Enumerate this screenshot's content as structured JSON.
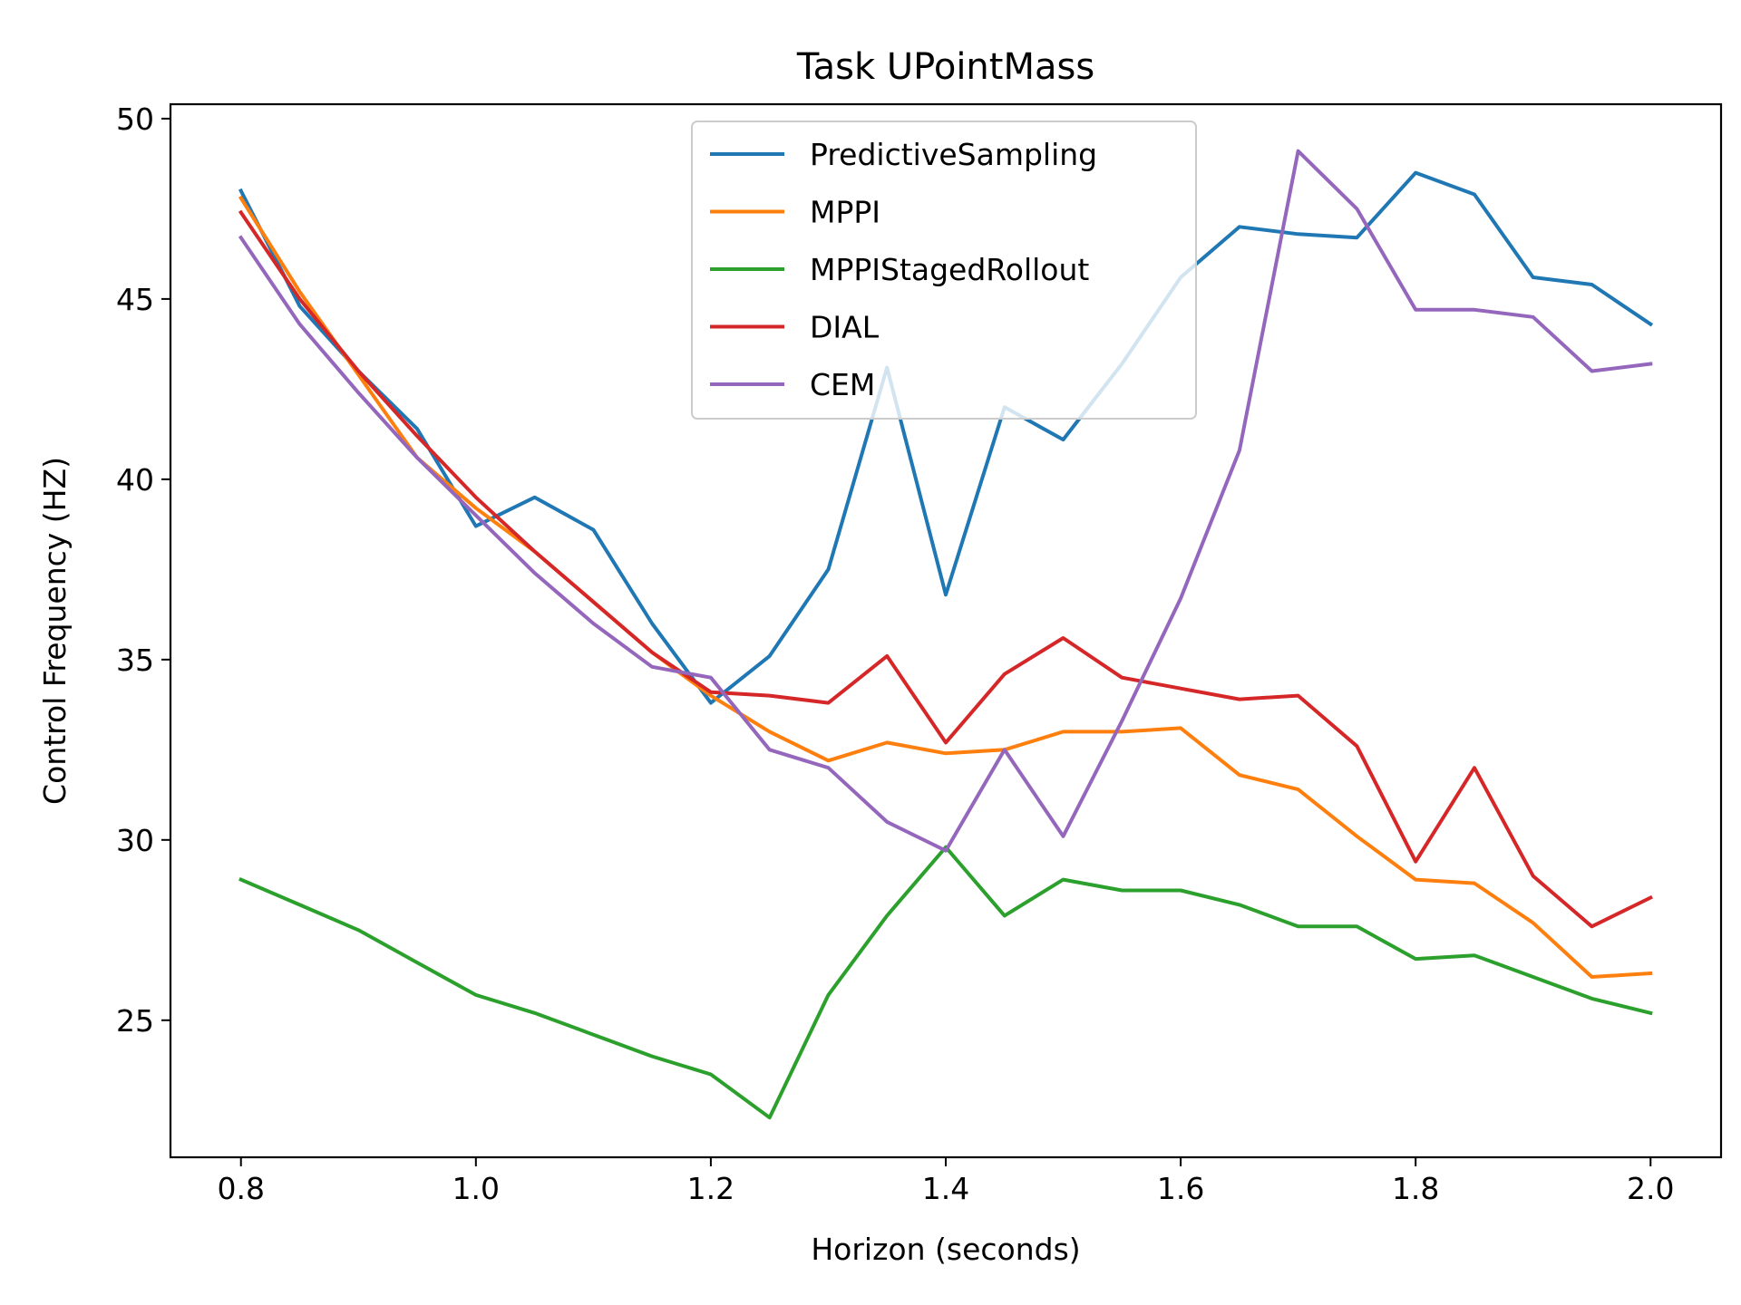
{
  "chart_data": {
    "type": "line",
    "title": "Task UPointMass",
    "xlabel": "Horizon (seconds)",
    "ylabel": "Control Frequency (HZ)",
    "xlim": [
      0.74,
      2.06
    ],
    "ylim": [
      21.2,
      50.4
    ],
    "xticks": [
      0.8,
      1.0,
      1.2,
      1.4,
      1.6,
      1.8,
      2.0
    ],
    "xtick_labels": [
      "0.8",
      "1.0",
      "1.2",
      "1.4",
      "1.6",
      "1.8",
      "2.0"
    ],
    "yticks": [
      25,
      30,
      35,
      40,
      45,
      50
    ],
    "ytick_labels": [
      "25",
      "30",
      "35",
      "40",
      "45",
      "50"
    ],
    "grid": false,
    "legend_position": "upper-center",
    "x": [
      0.8,
      0.85,
      0.9,
      0.95,
      1.0,
      1.05,
      1.1,
      1.15,
      1.2,
      1.25,
      1.3,
      1.35,
      1.4,
      1.45,
      1.5,
      1.55,
      1.6,
      1.65,
      1.7,
      1.75,
      1.8,
      1.85,
      1.9,
      1.95,
      2.0
    ],
    "series": [
      {
        "name": "PredictiveSampling",
        "color": "#1f77b4",
        "values": [
          48.0,
          44.8,
          43.0,
          41.4,
          38.7,
          39.5,
          38.6,
          36.0,
          33.8,
          35.1,
          37.5,
          43.1,
          36.8,
          42.0,
          41.1,
          43.2,
          45.6,
          47.0,
          46.8,
          46.7,
          48.5,
          47.9,
          45.6,
          45.4,
          44.3
        ]
      },
      {
        "name": "MPPI",
        "color": "#ff7f0e",
        "values": [
          47.8,
          45.2,
          42.9,
          40.6,
          39.2,
          38.0,
          36.6,
          35.2,
          34.0,
          33.0,
          32.2,
          32.7,
          32.4,
          32.5,
          33.0,
          33.0,
          33.1,
          31.8,
          31.4,
          30.1,
          28.9,
          28.8,
          27.7,
          26.2,
          26.3
        ]
      },
      {
        "name": "MPPIStagedRollout",
        "color": "#2ca02c",
        "values": [
          28.9,
          28.2,
          27.5,
          26.6,
          25.7,
          25.2,
          24.6,
          24.0,
          23.5,
          22.3,
          25.7,
          27.9,
          29.8,
          27.9,
          28.9,
          28.6,
          28.6,
          28.2,
          27.6,
          27.6,
          26.7,
          26.8,
          26.2,
          25.6,
          25.2
        ]
      },
      {
        "name": "DIAL",
        "color": "#d62728",
        "values": [
          47.4,
          45.0,
          43.0,
          41.2,
          39.5,
          38.0,
          36.6,
          35.2,
          34.1,
          34.0,
          33.8,
          35.1,
          32.7,
          34.6,
          35.6,
          34.5,
          34.2,
          33.9,
          34.0,
          32.6,
          29.4,
          32.0,
          29.0,
          27.6,
          28.4
        ]
      },
      {
        "name": "CEM",
        "color": "#9467bd",
        "values": [
          46.7,
          44.3,
          42.4,
          40.6,
          39.0,
          37.4,
          36.0,
          34.8,
          34.5,
          32.5,
          32.0,
          30.5,
          29.7,
          32.5,
          30.1,
          33.3,
          36.7,
          40.8,
          49.1,
          47.5,
          44.7,
          44.7,
          44.5,
          43.0,
          43.2
        ]
      }
    ]
  }
}
